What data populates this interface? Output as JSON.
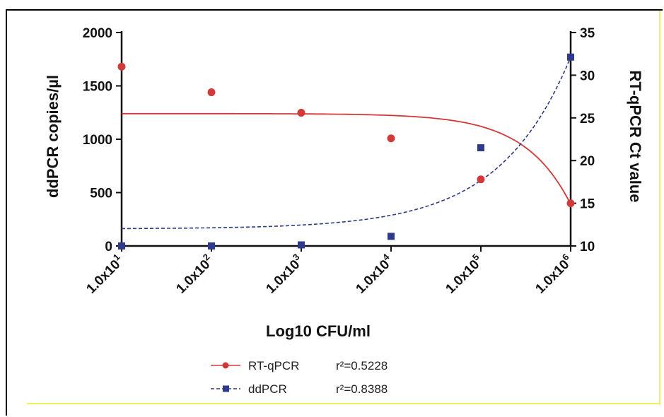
{
  "chart_data": {
    "type": "scatter",
    "title": "",
    "xlabel": "Log10 CFU/ml",
    "ylabel_left": "ddPCR copies/µl",
    "ylabel_right": "RT-qPCR Ct value",
    "x_ticks": [
      {
        "base": "1.0x10",
        "exp": "1"
      },
      {
        "base": "1.0x10",
        "exp": "2"
      },
      {
        "base": "1.0x10",
        "exp": "3"
      },
      {
        "base": "1.0x10",
        "exp": "4"
      },
      {
        "base": "1.0x10",
        "exp": "5"
      },
      {
        "base": "1.0x10",
        "exp": "6"
      }
    ],
    "x_scale": "log10",
    "x_values": [
      10,
      100,
      1000,
      10000,
      100000,
      1000000
    ],
    "ylim_left": [
      0,
      2000
    ],
    "yticks_left": [
      "0",
      "500",
      "1000",
      "1500",
      "2000"
    ],
    "ylim_right": [
      10,
      35
    ],
    "yticks_right": [
      "10",
      "15",
      "20",
      "25",
      "30",
      "35"
    ],
    "grid": false,
    "legend_position": "bottom-left",
    "series": [
      {
        "name": "RT-qPCR",
        "axis": "right",
        "marker": "circle",
        "line_style": "solid",
        "color": "#d23a3a",
        "r2_label": "r²=0.5228",
        "x": [
          10,
          100,
          1000,
          10000,
          100000,
          1000000
        ],
        "y": [
          31.0,
          28.0,
          25.6,
          22.6,
          17.8,
          15.0
        ]
      },
      {
        "name": "ddPCR",
        "axis": "left",
        "marker": "square",
        "line_style": "dashed",
        "color": "#2e3a8c",
        "r2_label": "r²=0.8388",
        "x": [
          10,
          100,
          1000,
          10000,
          100000,
          1000000
        ],
        "y": [
          0,
          0,
          10,
          90,
          920,
          1770
        ]
      }
    ]
  }
}
